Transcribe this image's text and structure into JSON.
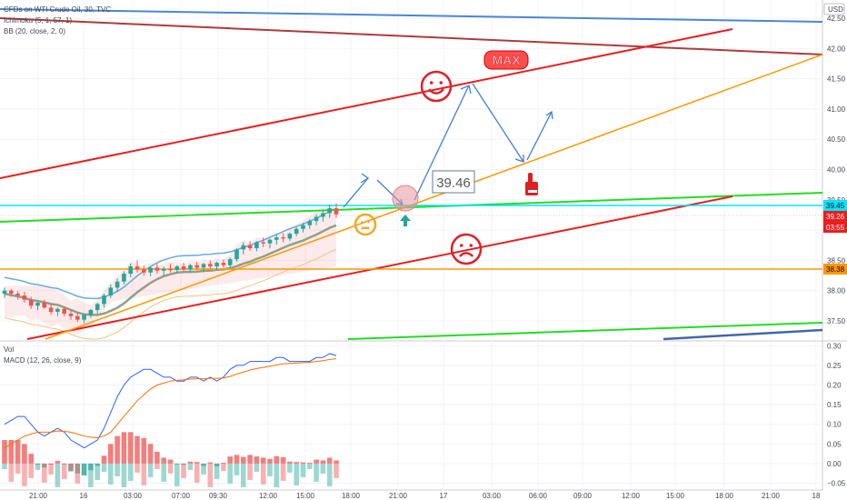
{
  "header": {
    "symbol": "CFDs on WTI Crude Oil, 30, TVC",
    "ichimoku": "Ichimoku (5, 1, 57, 1)",
    "bb": "BB (20, close, 2, 0)",
    "currency": "USD",
    "vol": "Vol",
    "macd": "MACD (12, 26, close, 9)"
  },
  "annotations": {
    "target_label": "39.46",
    "max_label": "MAX"
  },
  "price_tags": {
    "cyan": "39.45",
    "red": "39.26",
    "red_time": "03:55",
    "orange": "38.38"
  },
  "colors": {
    "up": "#26a69a",
    "down": "#ef5350",
    "cyan": "#00e5ff",
    "orange": "#ff9800",
    "red_line": "#e91e1e",
    "green_line": "#22dd22",
    "blue_arrow": "#3f7fd6"
  },
  "chart_data": [
    {
      "type": "candlestick",
      "title": "CFDs on WTI Crude Oil, 30, TVC",
      "y_ticks": [
        37.5,
        38.0,
        38.5,
        39.0,
        39.5,
        40.0,
        40.5,
        41.0,
        41.5,
        42.0,
        42.5
      ],
      "x_ticks": [
        "21:00",
        "16",
        "03:00",
        "07:00",
        "09:30",
        "12:00",
        "15:00",
        "18:00",
        "21:00",
        "17",
        "03:00",
        "06:00",
        "09:00",
        "12:00",
        "15:00",
        "18:00",
        "21:00",
        "18"
      ],
      "ylim": [
        37.2,
        42.8
      ],
      "candles": [
        [
          37.95,
          38.05,
          37.88,
          38.0
        ],
        [
          38.0,
          38.03,
          37.9,
          37.95
        ],
        [
          37.95,
          37.99,
          37.85,
          37.92
        ],
        [
          37.92,
          37.98,
          37.8,
          37.85
        ],
        [
          37.85,
          37.9,
          37.7,
          37.75
        ],
        [
          37.75,
          37.82,
          37.68,
          37.8
        ],
        [
          37.8,
          37.85,
          37.7,
          37.72
        ],
        [
          37.72,
          37.78,
          37.6,
          37.65
        ],
        [
          37.65,
          37.72,
          37.58,
          37.7
        ],
        [
          37.7,
          37.74,
          37.58,
          37.62
        ],
        [
          37.62,
          37.68,
          37.52,
          37.58
        ],
        [
          37.58,
          37.64,
          37.48,
          37.52
        ],
        [
          37.52,
          37.62,
          37.46,
          37.6
        ],
        [
          37.6,
          37.7,
          37.55,
          37.68
        ],
        [
          37.68,
          37.8,
          37.62,
          37.78
        ],
        [
          37.78,
          37.95,
          37.72,
          37.92
        ],
        [
          37.92,
          38.1,
          37.88,
          38.05
        ],
        [
          38.05,
          38.2,
          37.98,
          38.15
        ],
        [
          38.15,
          38.32,
          38.1,
          38.28
        ],
        [
          38.28,
          38.45,
          38.22,
          38.4
        ],
        [
          38.4,
          38.5,
          38.3,
          38.35
        ],
        [
          38.35,
          38.42,
          38.25,
          38.3
        ],
        [
          38.3,
          38.4,
          38.24,
          38.38
        ],
        [
          38.38,
          38.45,
          38.28,
          38.33
        ],
        [
          38.33,
          38.4,
          38.25,
          38.36
        ],
        [
          38.36,
          38.44,
          38.3,
          38.34
        ],
        [
          38.34,
          38.42,
          38.28,
          38.4
        ],
        [
          38.4,
          38.46,
          38.32,
          38.35
        ],
        [
          38.35,
          38.44,
          38.3,
          38.42
        ],
        [
          38.42,
          38.48,
          38.34,
          38.38
        ],
        [
          38.38,
          38.46,
          38.3,
          38.44
        ],
        [
          38.44,
          38.5,
          38.36,
          38.4
        ],
        [
          38.4,
          38.48,
          38.34,
          38.46
        ],
        [
          38.46,
          38.52,
          38.38,
          38.42
        ],
        [
          38.42,
          38.55,
          38.38,
          38.52
        ],
        [
          38.52,
          38.7,
          38.48,
          38.68
        ],
        [
          38.68,
          38.8,
          38.6,
          38.75
        ],
        [
          38.75,
          38.82,
          38.66,
          38.7
        ],
        [
          38.7,
          38.82,
          38.65,
          38.8
        ],
        [
          38.8,
          38.88,
          38.72,
          38.78
        ],
        [
          38.78,
          38.86,
          38.7,
          38.84
        ],
        [
          38.84,
          38.92,
          38.76,
          38.88
        ],
        [
          38.88,
          38.95,
          38.8,
          38.86
        ],
        [
          38.86,
          38.96,
          38.82,
          38.94
        ],
        [
          38.94,
          39.05,
          38.9,
          39.02
        ],
        [
          39.02,
          39.12,
          38.96,
          39.08
        ],
        [
          39.08,
          39.18,
          39.02,
          39.15
        ],
        [
          39.15,
          39.26,
          39.08,
          39.22
        ],
        [
          39.22,
          39.32,
          39.14,
          39.28
        ],
        [
          39.28,
          39.42,
          39.2,
          39.36
        ],
        [
          39.36,
          39.44,
          39.2,
          39.26
        ]
      ]
    },
    {
      "type": "macd",
      "title": "MACD (12, 26, close, 9)",
      "y_ticks": [
        -0.05,
        0.0,
        0.05,
        0.1,
        0.15,
        0.2,
        0.25,
        0.3
      ],
      "ylim": [
        -0.065,
        0.31
      ],
      "macd": [
        0.1,
        0.11,
        0.12,
        0.12,
        0.1,
        0.08,
        0.07,
        0.08,
        0.09,
        0.08,
        0.06,
        0.05,
        0.04,
        0.05,
        0.06,
        0.09,
        0.13,
        0.17,
        0.2,
        0.22,
        0.23,
        0.24,
        0.24,
        0.23,
        0.22,
        0.22,
        0.21,
        0.21,
        0.22,
        0.22,
        0.21,
        0.22,
        0.21,
        0.22,
        0.24,
        0.25,
        0.25,
        0.26,
        0.26,
        0.26,
        0.26,
        0.27,
        0.27,
        0.26,
        0.26,
        0.26,
        0.26,
        0.27,
        0.27,
        0.28,
        0.275
      ],
      "signal": [
        0.04,
        0.05,
        0.06,
        0.07,
        0.075,
        0.08,
        0.08,
        0.08,
        0.083,
        0.082,
        0.08,
        0.075,
        0.07,
        0.067,
        0.066,
        0.07,
        0.08,
        0.1,
        0.12,
        0.14,
        0.16,
        0.175,
        0.19,
        0.2,
        0.205,
        0.21,
        0.212,
        0.213,
        0.215,
        0.216,
        0.216,
        0.217,
        0.217,
        0.218,
        0.222,
        0.228,
        0.233,
        0.238,
        0.242,
        0.245,
        0.248,
        0.251,
        0.254,
        0.255,
        0.256,
        0.257,
        0.258,
        0.26,
        0.262,
        0.265,
        0.267
      ],
      "histogram": [
        0.06,
        0.06,
        0.06,
        0.05,
        0.025,
        0.0,
        -0.01,
        0.0,
        0.007,
        -0.002,
        -0.02,
        -0.025,
        -0.03,
        -0.017,
        -0.006,
        0.02,
        0.05,
        0.07,
        0.08,
        0.08,
        0.07,
        0.065,
        0.05,
        0.03,
        0.015,
        0.01,
        -0.002,
        -0.003,
        0.005,
        0.004,
        -0.006,
        0.003,
        -0.007,
        0.002,
        0.018,
        0.022,
        0.017,
        0.022,
        0.018,
        0.015,
        0.012,
        0.019,
        0.016,
        0.005,
        0.004,
        0.003,
        0.002,
        0.01,
        0.008,
        0.015,
        0.008
      ]
    }
  ]
}
